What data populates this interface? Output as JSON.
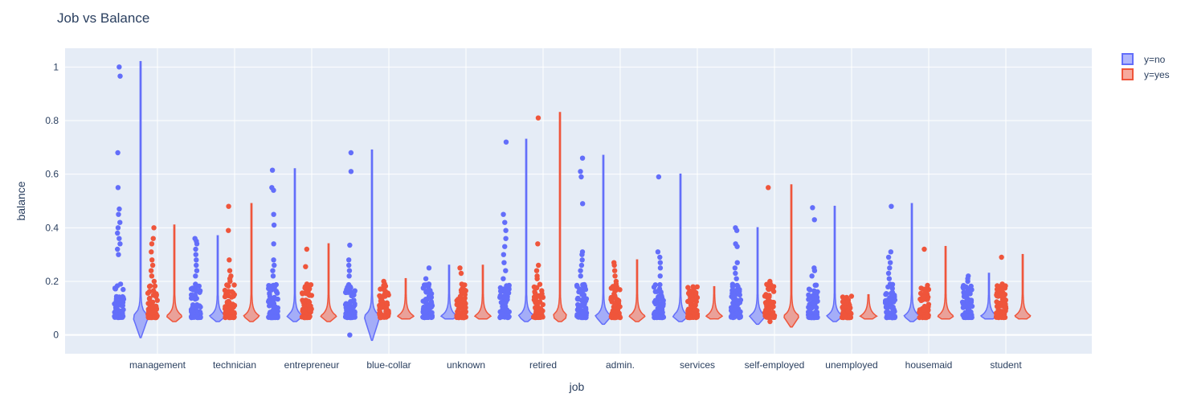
{
  "chart_data": {
    "type": "violin",
    "title": "Job vs Balance",
    "xlabel": "job",
    "ylabel": "balance",
    "ylim": [
      -0.07,
      1.07
    ],
    "yticks": [
      0,
      0.2,
      0.4,
      0.6,
      0.8,
      1
    ],
    "ytick_labels": [
      "0",
      "0.2",
      "0.4",
      "0.6",
      "0.8",
      "1"
    ],
    "categories": [
      "management",
      "technician",
      "entrepreneur",
      "blue-collar",
      "unknown",
      "retired",
      "admin.",
      "services",
      "self-employed",
      "unemployed",
      "housemaid",
      "student"
    ],
    "grid": true,
    "legend_position": "top-right",
    "series": [
      {
        "name": "y=no",
        "color": "#636efa",
        "ranges": [
          [
            -0.01,
            1.02
          ],
          [
            0.05,
            0.37
          ],
          [
            0.05,
            0.62
          ],
          [
            -0.02,
            0.69
          ],
          [
            0.06,
            0.26
          ],
          [
            0.05,
            0.73
          ],
          [
            0.04,
            0.67
          ],
          [
            0.05,
            0.6
          ],
          [
            0.04,
            0.4
          ],
          [
            0.05,
            0.48
          ],
          [
            0.05,
            0.49
          ],
          [
            0.06,
            0.23
          ]
        ],
        "outliers": [
          [
            1.0,
            0.966,
            0.68,
            0.55,
            0.47,
            0.45,
            0.42,
            0.4,
            0.38,
            0.36,
            0.34,
            0.32,
            0.3
          ],
          [
            0.36,
            0.35,
            0.34,
            0.32,
            0.3,
            0.28,
            0.26,
            0.24,
            0.22
          ],
          [
            0.615,
            0.55,
            0.54,
            0.45,
            0.41,
            0.34,
            0.28,
            0.26,
            0.24,
            0.22
          ],
          [
            0.68,
            0.61,
            0.335,
            0.28,
            0.26,
            0.24,
            0.22,
            0.0
          ],
          [
            0.25,
            0.21,
            0.19,
            0.17
          ],
          [
            0.72,
            0.45,
            0.42,
            0.39,
            0.36,
            0.33,
            0.3,
            0.27,
            0.24,
            0.21
          ],
          [
            0.66,
            0.61,
            0.59,
            0.49,
            0.31,
            0.3,
            0.28,
            0.26,
            0.24,
            0.22
          ],
          [
            0.59,
            0.31,
            0.29,
            0.27,
            0.25,
            0.22
          ],
          [
            0.4,
            0.39,
            0.34,
            0.33,
            0.27,
            0.25,
            0.23,
            0.21
          ],
          [
            0.475,
            0.43,
            0.25,
            0.24,
            0.22
          ],
          [
            0.48,
            0.31,
            0.29,
            0.27,
            0.25,
            0.23,
            0.21
          ],
          [
            0.22,
            0.21,
            0.2,
            0.18,
            0.16
          ]
        ]
      },
      {
        "name": "y=yes",
        "color": "#ef553b",
        "ranges": [
          [
            0.05,
            0.41
          ],
          [
            0.05,
            0.49
          ],
          [
            0.05,
            0.34
          ],
          [
            0.06,
            0.21
          ],
          [
            0.06,
            0.26
          ],
          [
            0.05,
            0.83
          ],
          [
            0.05,
            0.28
          ],
          [
            0.06,
            0.18
          ],
          [
            0.03,
            0.56
          ],
          [
            0.06,
            0.15
          ],
          [
            0.06,
            0.33
          ],
          [
            0.06,
            0.3
          ]
        ],
        "outliers": [
          [
            0.4,
            0.36,
            0.34,
            0.31,
            0.28,
            0.26,
            0.24,
            0.22,
            0.2
          ],
          [
            0.48,
            0.39,
            0.28,
            0.24,
            0.22,
            0.21,
            0.2
          ],
          [
            0.32,
            0.255,
            0.19,
            0.18,
            0.16
          ],
          [
            0.2,
            0.19,
            0.18,
            0.17
          ],
          [
            0.25,
            0.23,
            0.12,
            0.11
          ],
          [
            0.81,
            0.34,
            0.26,
            0.24,
            0.22,
            0.21
          ],
          [
            0.27,
            0.26,
            0.24,
            0.22,
            0.2,
            0.19
          ],
          [
            0.18,
            0.14,
            0.13
          ],
          [
            0.55,
            0.2,
            0.18,
            0.17,
            0.05
          ],
          [
            0.14,
            0.13,
            0.12
          ],
          [
            0.32,
            0.17,
            0.16,
            0.14
          ],
          [
            0.29,
            0.19,
            0.17,
            0.15
          ]
        ]
      }
    ]
  }
}
